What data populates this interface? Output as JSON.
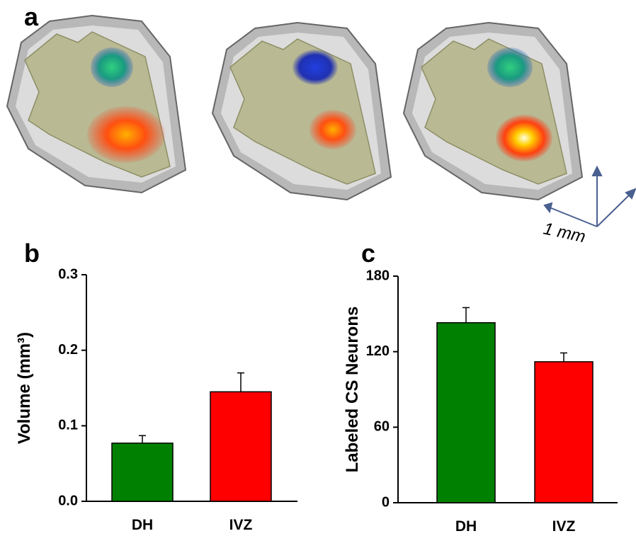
{
  "figure": {
    "panel_labels": [
      "a",
      "b",
      "c"
    ],
    "scale_label": "1 mm"
  },
  "chart_data": [
    {
      "type": "bar",
      "y_label": "Volume (mm³)",
      "categories": [
        "DH",
        "IVZ"
      ],
      "values": [
        0.077,
        0.145
      ],
      "errors": [
        0.01,
        0.025
      ],
      "colors": [
        "#008000",
        "#ff0000"
      ],
      "ylim": [
        0,
        0.3
      ],
      "yticks": [
        {
          "value": 0,
          "label": "0.0"
        },
        0.1,
        0.2,
        0.3
      ]
    },
    {
      "type": "bar",
      "y_label": "Labeled CS Neurons",
      "categories": [
        "DH",
        "IVZ"
      ],
      "values": [
        143,
        112
      ],
      "errors": [
        12,
        7
      ],
      "colors": [
        "#008000",
        "#ff0000"
      ],
      "ylim": [
        0,
        180
      ],
      "yticks": [
        0,
        60,
        120,
        180
      ]
    }
  ]
}
